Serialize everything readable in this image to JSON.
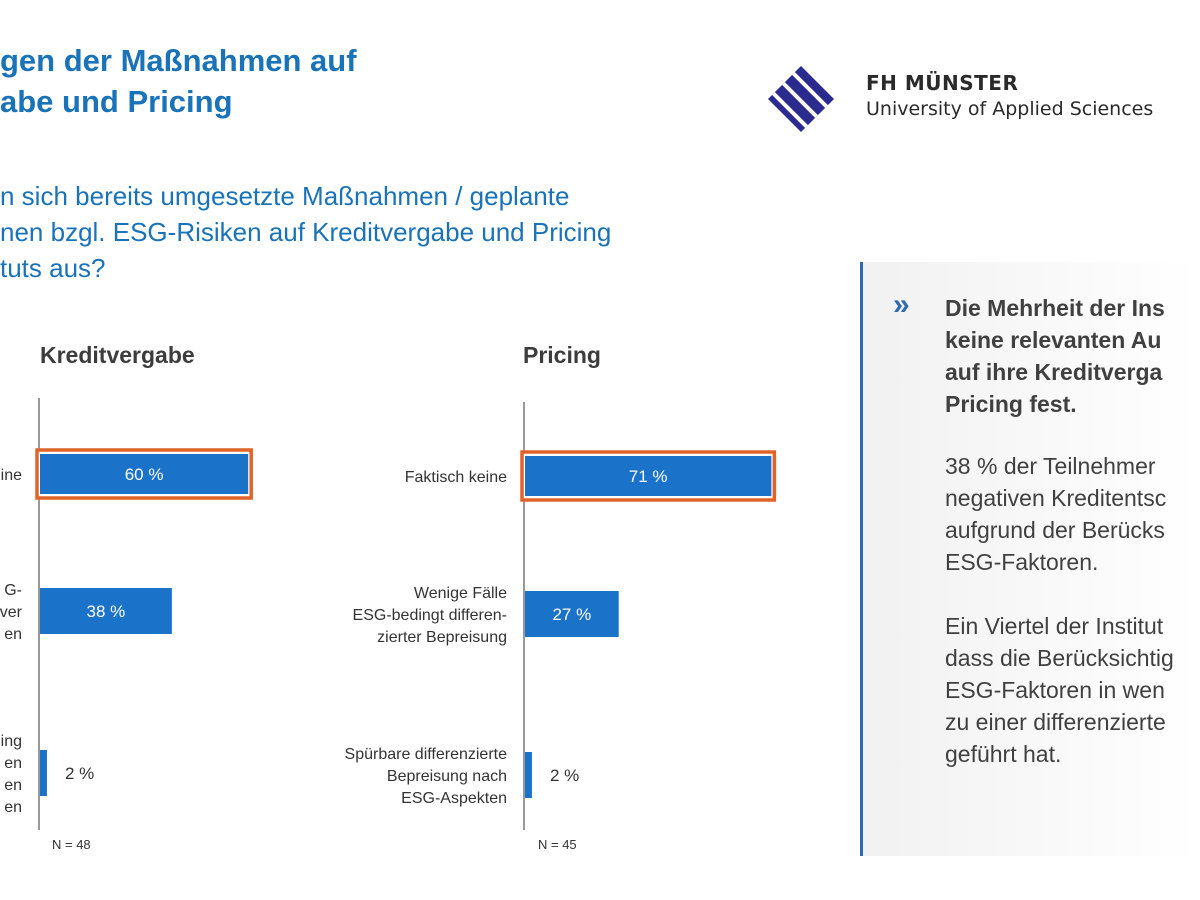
{
  "colors": {
    "title_blue": "#1a73b8",
    "bar_blue": "#1a73c8",
    "highlight": "#e0642a",
    "accent": "#2e6ab0"
  },
  "title": {
    "lines": [
      "gen der Maßnahmen auf",
      "abe und Pricing"
    ]
  },
  "question": {
    "lines": [
      "n sich bereits umgesetzte Maßnahmen / geplante",
      "nen bzgl. ESG-Risiken auf Kreditvergabe und Pricing",
      "tuts aus?"
    ]
  },
  "logo": {
    "name": "FH MÜNSTER",
    "subtitle": "University of Applied Sciences"
  },
  "chart_data": [
    {
      "type": "bar",
      "orientation": "horizontal",
      "title": "Kreditvergabe",
      "categories": [
        [
          "ine"
        ],
        [
          "G-",
          "ver",
          "en"
        ],
        [
          "ing",
          "en",
          "en",
          "en"
        ]
      ],
      "values": [
        60,
        38,
        2
      ],
      "value_labels": [
        "60 %",
        "38 %",
        "2 %"
      ],
      "highlight_index": 0,
      "xlim": [
        0,
        100
      ],
      "n_label": "N = 48"
    },
    {
      "type": "bar",
      "orientation": "horizontal",
      "title": "Pricing",
      "categories": [
        [
          "Faktisch keine"
        ],
        [
          "Wenige Fälle",
          "ESG-bedingt differen-",
          "zierter Bepreisung"
        ],
        [
          "Spürbare differenzierte",
          "Bepreisung nach",
          "ESG-Aspekten"
        ]
      ],
      "values": [
        71,
        27,
        2
      ],
      "value_labels": [
        "71 %",
        "27 %",
        "2 %"
      ],
      "highlight_index": 0,
      "xlim": [
        0,
        100
      ],
      "n_label": "N = 45"
    }
  ],
  "summary": {
    "lines": [
      "Die Mehrheit der Ins",
      "keine relevanten Au",
      "auf ihre Kreditverga",
      "Pricing fest."
    ],
    "paragraph1": [
      "38 % der Teilnehmer",
      "negativen Kreditentsc",
      "aufgrund der Berücks",
      "ESG-Faktoren."
    ],
    "paragraph2": [
      "Ein Viertel der Institut",
      "dass die Berücksichtig",
      "ESG-Faktoren in wen",
      "zu einer differenzierte",
      "geführt hat."
    ]
  }
}
